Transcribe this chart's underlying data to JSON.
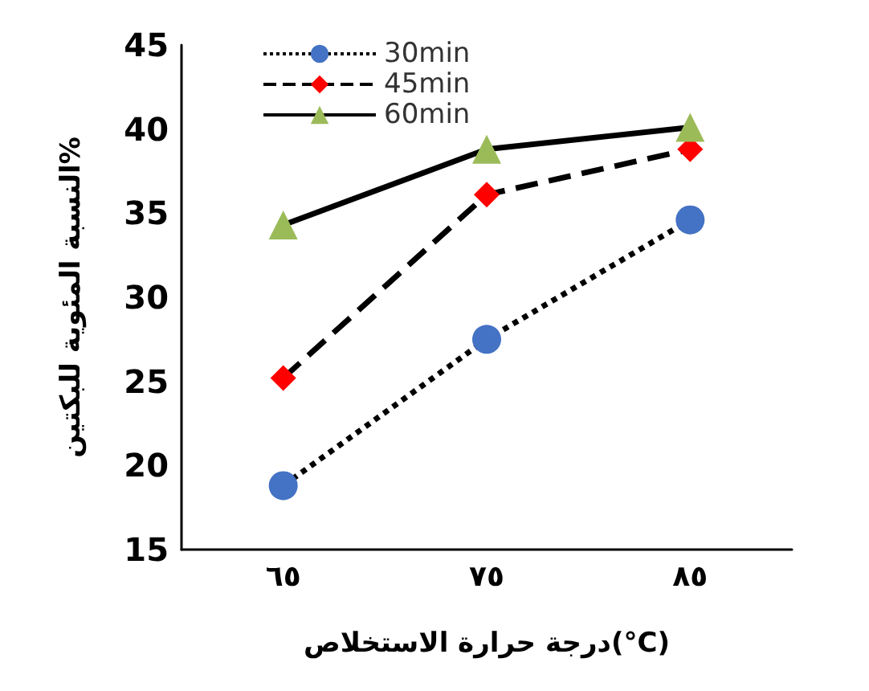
{
  "chart_data": {
    "type": "line",
    "xlabel": "درجة حرارة الاستخلاص(°C)",
    "ylabel": "النسبة المئوية للبكتين%",
    "categories": [
      "٦٥",
      "٧٥",
      "٨٥"
    ],
    "series": [
      {
        "name": "30min",
        "color": "#4472c4",
        "marker": "circle",
        "line_style": "dotted",
        "values": [
          18.8,
          27.5,
          34.6
        ]
      },
      {
        "name": "45min",
        "color": "#ff0000",
        "marker": "diamond",
        "line_style": "dashed",
        "values": [
          25.2,
          36.1,
          38.8
        ]
      },
      {
        "name": "60min",
        "color": "#9bbb59",
        "marker": "triangle",
        "line_style": "solid",
        "values": [
          34.3,
          38.8,
          40.1
        ]
      }
    ],
    "ylim": [
      15,
      45
    ],
    "yticks": [
      15,
      20,
      25,
      30,
      35,
      40,
      45
    ],
    "grid": false,
    "legend": "top left"
  }
}
